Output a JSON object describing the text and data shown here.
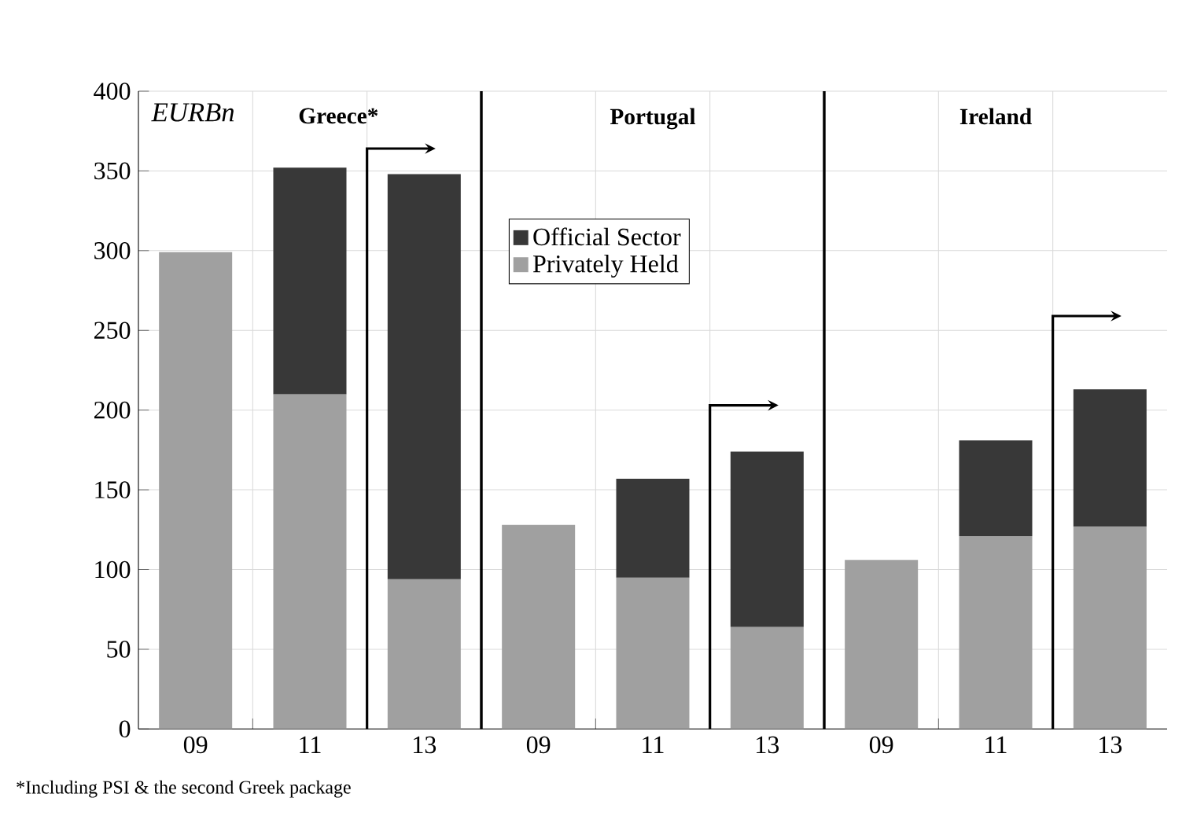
{
  "chart_data": {
    "type": "bar",
    "stacked": true,
    "ylabel": "EURBn",
    "categories": [
      "09",
      "11",
      "13",
      "09",
      "11",
      "13",
      "09",
      "11",
      "13"
    ],
    "series": [
      {
        "name": "Privately Held",
        "color": "#a0a0a0",
        "values": [
          299,
          210,
          94,
          128,
          95,
          64,
          106,
          121,
          127
        ]
      },
      {
        "name": "Official Sector",
        "color": "#383838",
        "values": [
          null,
          142,
          254,
          null,
          62,
          110,
          null,
          60,
          86
        ]
      }
    ],
    "annotations": [
      "Greece*",
      "Portugal",
      "Ireland",
      "*Including PSI & the second Greek package"
    ],
    "ylim": [
      0,
      400
    ],
    "yticks": [
      0,
      50,
      100,
      150,
      200,
      250,
      300,
      350,
      400
    ],
    "grid": true,
    "legend": "top"
  }
}
